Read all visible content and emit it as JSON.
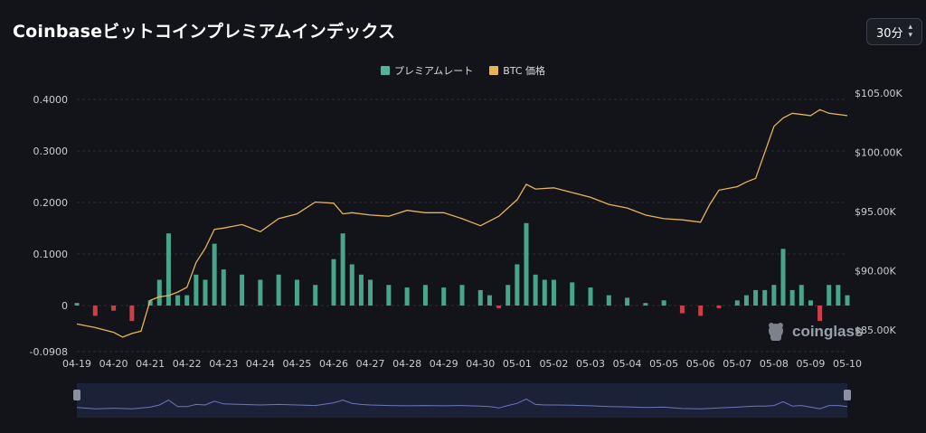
{
  "header": {
    "title": "Coinbaseビットコインプレミアムインデックス",
    "interval_label": "30分"
  },
  "colors": {
    "premium_positive": "#4fb597",
    "premium_negative": "#e0444f",
    "btc_price": "#e6b35a",
    "grid": "#2a2e37",
    "navigator_bg": "#1b2238",
    "navigator_line": "#6b78b8"
  },
  "watermark": {
    "text": "coinglass",
    "icon": "coinglass-logo-icon"
  },
  "chart_data": {
    "type": "bar+line",
    "title": "Coinbaseビットコインプレミアムインデックス",
    "legend_position": "top-center",
    "grid": true,
    "x_tick_labels": [
      "04-19",
      "04-20",
      "04-21",
      "04-22",
      "04-23",
      "04-24",
      "04-25",
      "04-26",
      "04-27",
      "04-28",
      "04-29",
      "04-30",
      "05-01",
      "05-02",
      "05-03",
      "05-04",
      "05-05",
      "05-06",
      "05-07",
      "05-08",
      "05-09",
      "05-10"
    ],
    "y_left": {
      "ticks": [
        "0.4000",
        "0.3000",
        "0.2000",
        "0.1000",
        "0",
        "-0.0908"
      ],
      "range": [
        -0.0908,
        0.4
      ]
    },
    "y_right": {
      "ticks": [
        "$105.00K",
        "$100.00K",
        "$95.00K",
        "$90.00K",
        "$85.00K"
      ],
      "range": [
        84000,
        105500
      ]
    },
    "series": [
      {
        "name": "プレミアムレート",
        "type": "bar",
        "x_days": [
          0,
          0.5,
          1,
          1.5,
          2,
          2.25,
          2.5,
          2.75,
          3,
          3.25,
          3.5,
          3.75,
          4,
          4.5,
          5,
          5.5,
          6,
          6.5,
          7,
          7.25,
          7.5,
          7.75,
          8,
          8.5,
          9,
          9.5,
          10,
          10.5,
          11,
          11.25,
          11.5,
          11.75,
          12,
          12.25,
          12.5,
          12.75,
          13,
          13.5,
          14,
          14.5,
          15,
          15.5,
          16,
          16.5,
          17,
          17.5,
          18,
          18.25,
          18.5,
          18.75,
          19,
          19.25,
          19.5,
          19.75,
          20,
          20.25,
          20.5,
          20.75,
          21
        ],
        "values": [
          0.005,
          -0.02,
          -0.01,
          -0.03,
          0.01,
          0.05,
          0.14,
          0.02,
          0.02,
          0.06,
          0.05,
          0.12,
          0.07,
          0.06,
          0.05,
          0.06,
          0.05,
          0.04,
          0.09,
          0.14,
          0.08,
          0.06,
          0.05,
          0.04,
          0.035,
          0.04,
          0.035,
          0.04,
          0.03,
          0.02,
          -0.005,
          0.04,
          0.08,
          0.16,
          0.06,
          0.05,
          0.05,
          0.045,
          0.035,
          0.02,
          0.015,
          0.005,
          0.01,
          -0.015,
          -0.02,
          -0.005,
          0.01,
          0.02,
          0.03,
          0.03,
          0.04,
          0.11,
          0.03,
          0.04,
          0.01,
          -0.03,
          0.04,
          0.04,
          0.02
        ]
      },
      {
        "name": "BTC 価格",
        "type": "line",
        "x_days": [
          0,
          0.5,
          1,
          1.25,
          1.5,
          1.75,
          2,
          2.25,
          2.5,
          2.75,
          3,
          3.25,
          3.5,
          3.75,
          4,
          4.5,
          5,
          5.5,
          6,
          6.5,
          7,
          7.25,
          7.5,
          8,
          8.5,
          9,
          9.5,
          10,
          10.5,
          11,
          11.5,
          12,
          12.25,
          12.5,
          13,
          13.5,
          14,
          14.5,
          15,
          15.5,
          16,
          16.5,
          17,
          17.25,
          17.5,
          18,
          18.25,
          18.5,
          19,
          19.25,
          19.5,
          20,
          20.25,
          20.5,
          21
        ],
        "values": [
          85500,
          85200,
          84800,
          84400,
          84700,
          84900,
          87500,
          87800,
          87900,
          88200,
          88600,
          90700,
          91900,
          93500,
          93600,
          93900,
          93300,
          94400,
          94800,
          95800,
          95700,
          94800,
          94900,
          94700,
          94600,
          95100,
          94900,
          94900,
          94400,
          93800,
          94600,
          96000,
          97300,
          96900,
          97000,
          96600,
          96200,
          95600,
          95300,
          94700,
          94400,
          94300,
          94100,
          95600,
          96800,
          97100,
          97500,
          97800,
          102200,
          102900,
          103300,
          103100,
          103600,
          103300,
          103100
        ]
      }
    ]
  }
}
